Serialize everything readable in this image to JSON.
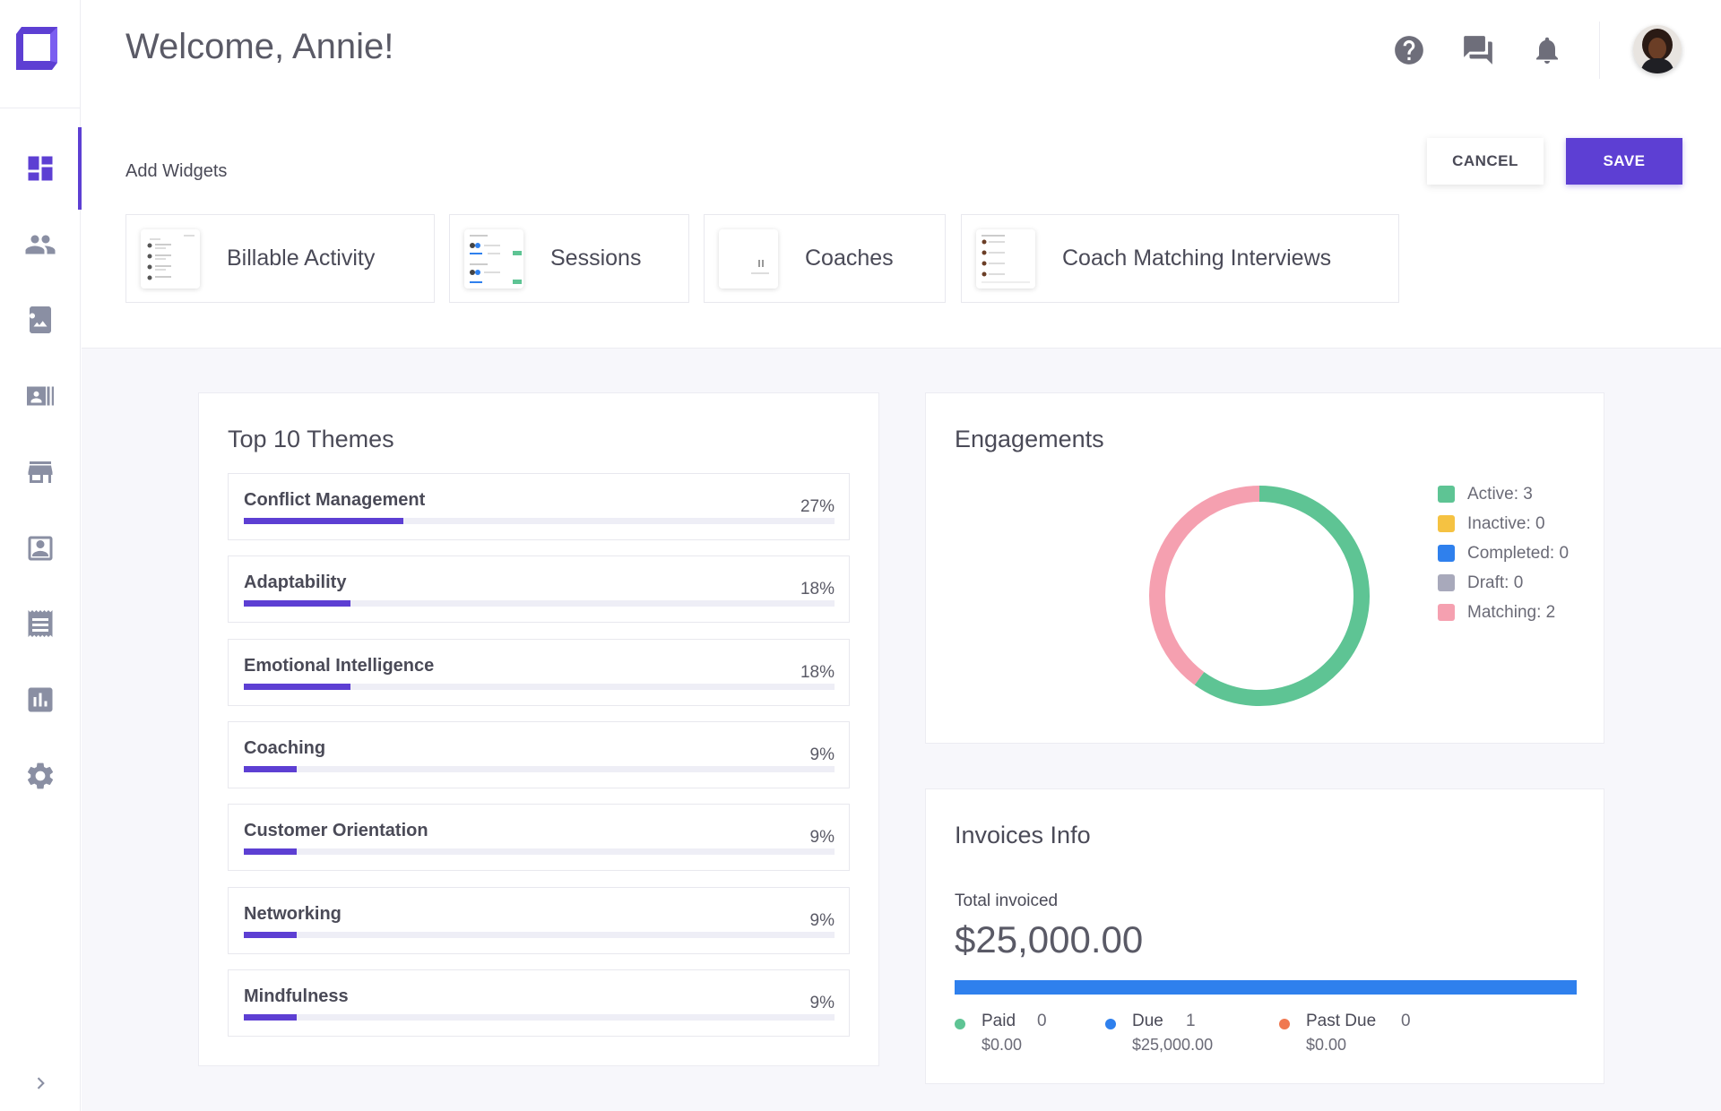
{
  "header": {
    "welcome": "Welcome, Annie!"
  },
  "sidebar": {
    "items": [
      {
        "icon": "dashboard-icon"
      },
      {
        "icon": "people-icon"
      },
      {
        "icon": "image-book-icon"
      },
      {
        "icon": "contact-list-icon"
      },
      {
        "icon": "store-icon"
      },
      {
        "icon": "contact-card-icon"
      },
      {
        "icon": "receipt-icon"
      },
      {
        "icon": "bar-chart-icon"
      },
      {
        "icon": "gear-icon"
      }
    ],
    "active_index": 0
  },
  "widgets": {
    "label": "Add Widgets",
    "cancel": "CANCEL",
    "save": "SAVE",
    "items": [
      {
        "label": "Billable Activity"
      },
      {
        "label": "Sessions"
      },
      {
        "label": "Coaches"
      },
      {
        "label": "Coach Matching Interviews"
      }
    ]
  },
  "themes": {
    "title": "Top 10 Themes",
    "items": [
      {
        "name": "Conflict Management",
        "pct": "27%",
        "value": 27
      },
      {
        "name": "Adaptability",
        "pct": "18%",
        "value": 18
      },
      {
        "name": "Emotional Intelligence",
        "pct": "18%",
        "value": 18
      },
      {
        "name": "Coaching",
        "pct": "9%",
        "value": 9
      },
      {
        "name": "Customer Orientation",
        "pct": "9%",
        "value": 9
      },
      {
        "name": "Networking",
        "pct": "9%",
        "value": 9
      },
      {
        "name": "Mindfulness",
        "pct": "9%",
        "value": 9
      }
    ]
  },
  "engagements": {
    "title": "Engagements",
    "legend": [
      {
        "label": "Active: 3",
        "color": "#5ec494"
      },
      {
        "label": "Inactive: 0",
        "color": "#f5c242"
      },
      {
        "label": "Completed: 0",
        "color": "#2f80ed"
      },
      {
        "label": "Draft: 0",
        "color": "#a8a9bb"
      },
      {
        "label": "Matching: 2",
        "color": "#f5a0b0"
      }
    ]
  },
  "chart_data": {
    "type": "pie",
    "categories": [
      "Active",
      "Inactive",
      "Completed",
      "Draft",
      "Matching"
    ],
    "values": [
      3,
      0,
      0,
      0,
      2
    ],
    "title": "Engagements"
  },
  "invoices": {
    "title": "Invoices Info",
    "total_label": "Total invoiced",
    "total": "$25,000.00",
    "stats": [
      {
        "name": "Paid",
        "count": "0",
        "amount": "$0.00",
        "color": "#5ec494"
      },
      {
        "name": "Due",
        "count": "1",
        "amount": "$25,000.00",
        "color": "#2f80ed"
      },
      {
        "name": "Past Due",
        "count": "0",
        "amount": "$0.00",
        "color": "#f07850"
      }
    ]
  },
  "colors": {
    "accent": "#5d3fd3"
  }
}
